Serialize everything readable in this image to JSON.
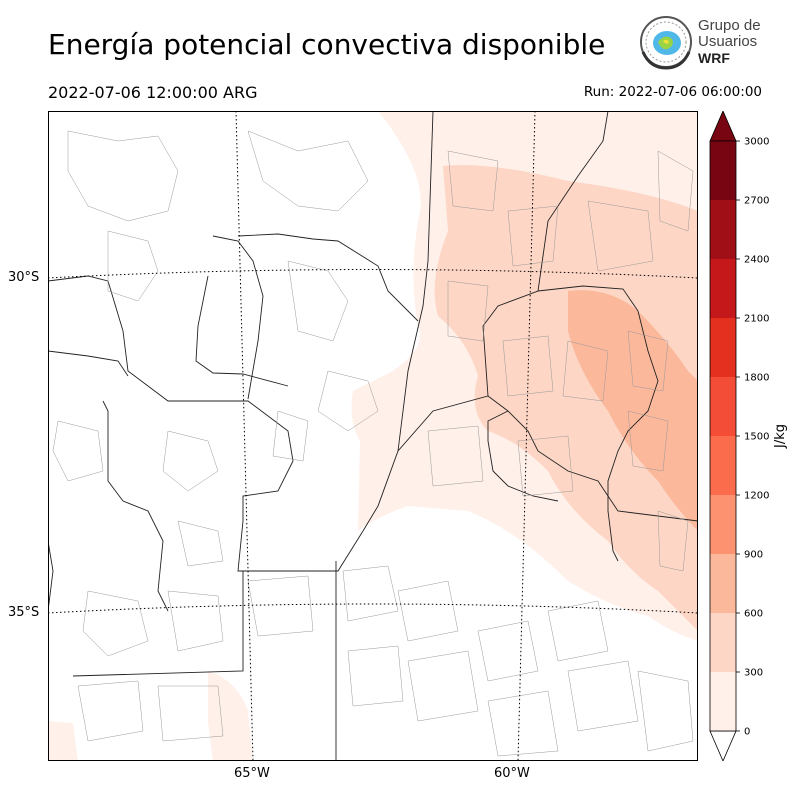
{
  "title": "Energía potencial convectiva disponible",
  "valid_time": "2022-07-06 12:00:00 ARG",
  "run_time": "Run: 2022-07-06 06:00:00",
  "logo": {
    "line1": "Grupo de",
    "line2": "Usuarios",
    "line3": "WRF",
    "icon": "wrf-globe-logo"
  },
  "map": {
    "lat_labels": [
      "30°S",
      "35°S"
    ],
    "lon_labels": [
      "65°W",
      "60°W"
    ],
    "cape_color": "#fcd3c1"
  },
  "colorbar": {
    "unit": "J/kg",
    "ticks": [
      "0",
      "300",
      "600",
      "900",
      "1200",
      "1500",
      "1800",
      "2100",
      "2400",
      "2700",
      "3000"
    ],
    "colors": [
      "#fff0ea",
      "#fdd6c5",
      "#fcb89b",
      "#fc9270",
      "#fb6c4c",
      "#f44d37",
      "#e3301f",
      "#c5181b",
      "#a00f15",
      "#770612"
    ]
  }
}
